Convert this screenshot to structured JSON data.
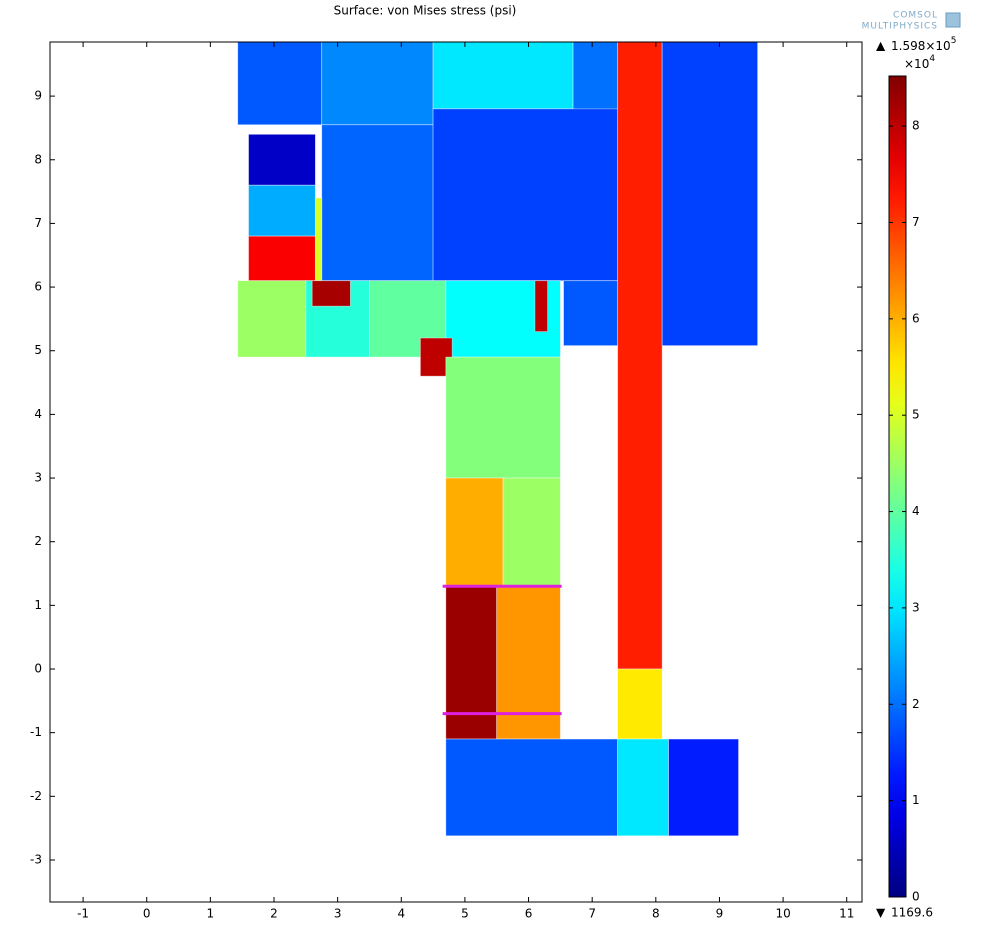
{
  "chart_data": {
    "type": "surface",
    "title": "Surface: von Mises stress (psi)",
    "logo": [
      "COMSOL",
      "MULTIPHYSICS"
    ],
    "xlim": [
      -1.52,
      11.24
    ],
    "ylim": [
      -3.66,
      9.85
    ],
    "xticks": [
      -1,
      0,
      1,
      2,
      3,
      4,
      5,
      6,
      7,
      8,
      9,
      10,
      11
    ],
    "yticks": [
      -3,
      -2,
      -1,
      0,
      1,
      2,
      3,
      4,
      5,
      6,
      7,
      8,
      9
    ],
    "colormap": "jet",
    "clim": [
      0,
      8.52
    ],
    "colorbar_ticks": [
      0,
      1,
      2,
      3,
      4,
      5,
      6,
      7,
      8
    ],
    "colorbar_multiplier": {
      "base": "×10",
      "exponent": "4"
    },
    "max_label": {
      "mantissa": "1.598×10",
      "exponent": "5"
    },
    "min_label": "1169.6",
    "regions": [
      {
        "x": [
          1.43,
          2.75
        ],
        "y": [
          8.55,
          9.85
        ],
        "value": 1.8
      },
      {
        "x": [
          2.75,
          4.5
        ],
        "y": [
          8.55,
          9.85
        ],
        "value": 2.2
      },
      {
        "x": [
          4.5,
          6.7
        ],
        "y": [
          8.8,
          9.85
        ],
        "value": 3.0
      },
      {
        "x": [
          6.7,
          7.4
        ],
        "y": [
          8.55,
          9.85
        ],
        "value": 2.0
      },
      {
        "x": [
          2.75,
          4.5
        ],
        "y": [
          6.1,
          8.55
        ],
        "value": 1.9
      },
      {
        "x": [
          4.5,
          7.4
        ],
        "y": [
          6.1,
          8.8
        ],
        "value": 1.6
      },
      {
        "x": [
          6.55,
          7.4
        ],
        "y": [
          5.08,
          6.1
        ],
        "value": 1.8
      },
      {
        "x": [
          1.6,
          2.65
        ],
        "y": [
          7.6,
          8.4
        ],
        "value": 0.6
      },
      {
        "x": [
          1.6,
          2.65
        ],
        "y": [
          6.8,
          7.6
        ],
        "value": 2.5
      },
      {
        "x": [
          1.6,
          2.65
        ],
        "y": [
          6.1,
          6.8
        ],
        "value": 7.5
      },
      {
        "x": [
          2.65,
          2.75
        ],
        "y": [
          6.1,
          7.4
        ],
        "value": 5.0
      },
      {
        "x": [
          1.43,
          2.5
        ],
        "y": [
          4.9,
          6.1
        ],
        "value": 4.5
      },
      {
        "x": [
          2.5,
          3.5
        ],
        "y": [
          4.9,
          6.1
        ],
        "value": 3.5
      },
      {
        "x": [
          3.5,
          4.7
        ],
        "y": [
          4.9,
          6.1
        ],
        "value": 4.0
      },
      {
        "x": [
          4.7,
          6.5
        ],
        "y": [
          4.9,
          6.1
        ],
        "value": 3.2
      },
      {
        "x": [
          2.6,
          3.2
        ],
        "y": [
          5.7,
          6.1
        ],
        "value": 8.2
      },
      {
        "x": [
          4.3,
          4.8
        ],
        "y": [
          4.6,
          5.2
        ],
        "value": 8.0
      },
      {
        "x": [
          6.1,
          6.3
        ],
        "y": [
          5.3,
          6.1
        ],
        "value": 8.0
      },
      {
        "x": [
          4.7,
          6.5
        ],
        "y": [
          3.0,
          4.9
        ],
        "value": 4.3
      },
      {
        "x": [
          4.7,
          5.6
        ],
        "y": [
          1.3,
          3.0
        ],
        "value": 6.0
      },
      {
        "x": [
          5.6,
          6.5
        ],
        "y": [
          1.3,
          3.0
        ],
        "value": 4.5
      },
      {
        "x": [
          4.7,
          5.5
        ],
        "y": [
          -1.1,
          1.3
        ],
        "value": 8.3
      },
      {
        "x": [
          5.5,
          6.5
        ],
        "y": [
          -1.1,
          1.3
        ],
        "value": 6.2
      },
      {
        "x": [
          7.4,
          8.1
        ],
        "y": [
          0,
          9.85
        ],
        "value": 7.2
      },
      {
        "x": [
          7.4,
          8.1
        ],
        "y": [
          -1.1,
          0
        ],
        "value": 5.5
      },
      {
        "x": [
          8.1,
          9.6
        ],
        "y": [
          5.08,
          9.85
        ],
        "value": 1.6
      },
      {
        "x": [
          4.7,
          7.4
        ],
        "y": [
          -2.62,
          -1.1
        ],
        "value": 1.8
      },
      {
        "x": [
          7.4,
          8.2
        ],
        "y": [
          -2.62,
          -1.1
        ],
        "value": 3.0
      },
      {
        "x": [
          8.2,
          9.3
        ],
        "y": [
          -2.62,
          -1.1
        ],
        "value": 1.3
      }
    ],
    "cut_lines": [
      {
        "x": [
          4.65,
          6.52
        ],
        "y": 1.3,
        "color": "#e020e0"
      },
      {
        "x": [
          4.65,
          6.52
        ],
        "y": -0.7,
        "color": "#e020e0"
      }
    ]
  }
}
